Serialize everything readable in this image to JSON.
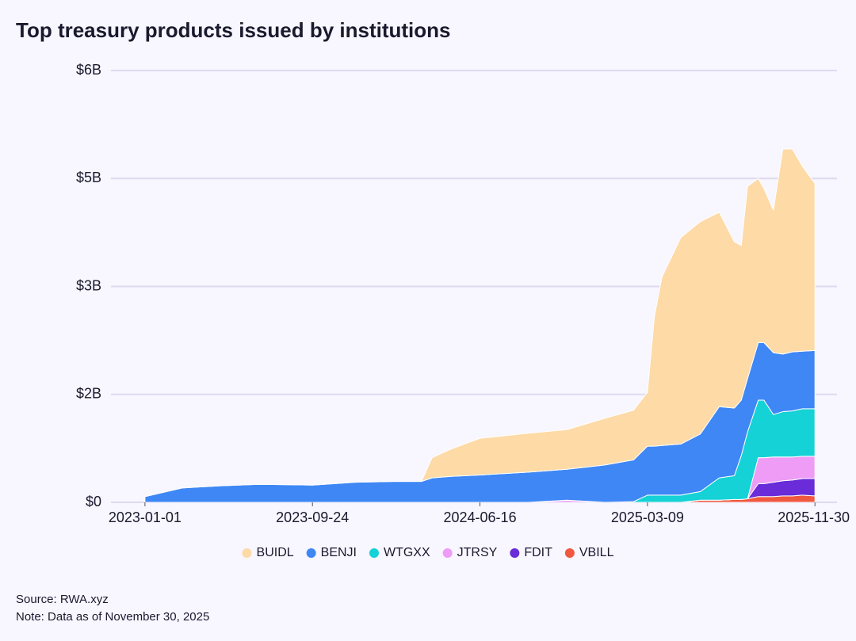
{
  "chart_data": {
    "type": "stacked-area",
    "title": "Top treasury products issued by institutions",
    "source": "Source: RWA.xyz",
    "note": "Note: Data as of November 30, 2025",
    "x": [
      "2023-01-01",
      "2023-03-01",
      "2023-05-01",
      "2023-07-01",
      "2023-09-24",
      "2023-12-01",
      "2024-02-01",
      "2024-03-15",
      "2024-04-01",
      "2024-05-01",
      "2024-06-16",
      "2024-09-01",
      "2024-11-01",
      "2025-01-01",
      "2025-02-15",
      "2025-03-09",
      "2025-03-20",
      "2025-04-01",
      "2025-05-01",
      "2025-06-01",
      "2025-07-01",
      "2025-07-25",
      "2025-08-05",
      "2025-08-15",
      "2025-09-01",
      "2025-09-10",
      "2025-09-25",
      "2025-10-10",
      "2025-10-25",
      "2025-11-10",
      "2025-11-30"
    ],
    "xlim": [
      "2022-11-08",
      "2026-01-04"
    ],
    "xticks": [
      "2023-01-01",
      "2023-09-24",
      "2024-06-16",
      "2025-03-09",
      "2025-11-30"
    ],
    "ylim": [
      0,
      6
    ],
    "yticks": [
      {
        "value": 0,
        "label": "$0"
      },
      {
        "value": 1.5,
        "label": "$2B"
      },
      {
        "value": 3,
        "label": "$3B"
      },
      {
        "value": 4.5,
        "label": "$5B"
      },
      {
        "value": 6,
        "label": "$6B"
      }
    ],
    "grid": true,
    "legend": "bottom",
    "series": [
      {
        "name": "VBILL",
        "color": "#f0583f",
        "values": [
          0,
          0,
          0,
          0,
          0,
          0,
          0,
          0,
          0,
          0,
          0,
          0,
          0,
          0,
          0,
          0,
          0,
          0,
          0,
          0.03,
          0.03,
          0.04,
          0.04,
          0.05,
          0.08,
          0.08,
          0.08,
          0.09,
          0.09,
          0.1,
          0.09
        ]
      },
      {
        "name": "FDIT",
        "color": "#6a2bd9",
        "values": [
          0,
          0,
          0,
          0,
          0,
          0,
          0,
          0,
          0,
          0,
          0,
          0,
          0,
          0,
          0,
          0,
          0,
          0,
          0,
          0,
          0,
          0,
          0,
          0,
          0.18,
          0.18,
          0.2,
          0.21,
          0.22,
          0.23,
          0.24
        ]
      },
      {
        "name": "JTRSY",
        "color": "#ee9cf5",
        "values": [
          0,
          0,
          0,
          0,
          0,
          0,
          0,
          0,
          0,
          0,
          0,
          0,
          0.03,
          0,
          0,
          0,
          0,
          0,
          0,
          0,
          0,
          0,
          0,
          0,
          0.36,
          0.36,
          0.35,
          0.33,
          0.32,
          0.31,
          0.31
        ]
      },
      {
        "name": "WTGXX",
        "color": "#14d2d6",
        "values": [
          0,
          0,
          0,
          0,
          0,
          0,
          0,
          0,
          0,
          0,
          0,
          0,
          0,
          0,
          0.01,
          0.1,
          0.1,
          0.1,
          0.1,
          0.12,
          0.31,
          0.33,
          0.61,
          0.93,
          0.8,
          0.8,
          0.59,
          0.63,
          0.64,
          0.66,
          0.66
        ]
      },
      {
        "name": "BENJI",
        "color": "#3e87f5",
        "values": [
          0.08,
          0.2,
          0.23,
          0.25,
          0.24,
          0.28,
          0.29,
          0.29,
          0.34,
          0.36,
          0.38,
          0.42,
          0.43,
          0.52,
          0.58,
          0.68,
          0.68,
          0.69,
          0.71,
          0.8,
          0.99,
          0.94,
          0.77,
          0.74,
          0.8,
          0.8,
          0.86,
          0.8,
          0.82,
          0.8,
          0.81
        ]
      },
      {
        "name": "BUIDL",
        "color": "#fddaa6",
        "values": [
          0,
          0,
          0,
          0,
          0,
          0,
          0,
          0,
          0.28,
          0.38,
          0.51,
          0.54,
          0.55,
          0.65,
          0.69,
          0.75,
          1.8,
          2.34,
          2.87,
          2.95,
          2.7,
          2.31,
          2.15,
          2.67,
          2.28,
          2.14,
          1.98,
          2.85,
          2.82,
          2.57,
          2.32
        ]
      }
    ]
  }
}
